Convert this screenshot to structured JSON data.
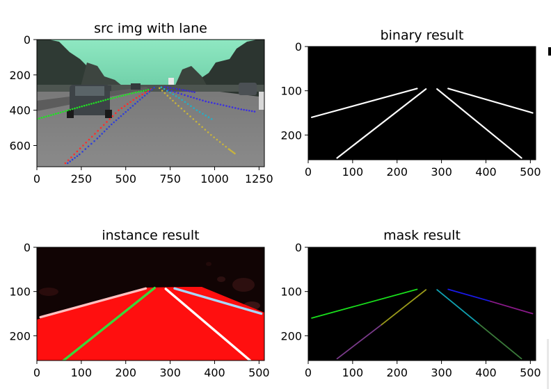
{
  "chart_data": [
    {
      "type": "image",
      "title": "src img with lane",
      "xlim": [
        0,
        1280
      ],
      "ylim": [
        720,
        0
      ],
      "xticks": [
        "0",
        "250",
        "500",
        "750",
        "1000",
        "1250"
      ],
      "xtick_values": [
        0,
        250,
        500,
        750,
        1000,
        1250
      ],
      "yticks": [
        "0",
        "200",
        "400",
        "600"
      ],
      "ytick_values": [
        0,
        200,
        400,
        600
      ],
      "lanes": [
        {
          "color": "#21e024",
          "points": [
            [
              0,
              450
            ],
            [
              80,
              428
            ],
            [
              160,
              405
            ],
            [
              240,
              382
            ],
            [
              320,
              360
            ],
            [
              400,
              338
            ],
            [
              480,
              318
            ],
            [
              560,
              298
            ],
            [
              640,
              282
            ]
          ]
        },
        {
          "color": "#ff2a2a",
          "points": [
            [
              160,
              700
            ],
            [
              260,
              600
            ],
            [
              360,
              500
            ],
            [
              460,
              400
            ],
            [
              560,
              330
            ],
            [
              660,
              272
            ]
          ]
        },
        {
          "color": "#2f3fd8",
          "points": [
            [
              660,
              272
            ],
            [
              580,
              340
            ],
            [
              500,
              410
            ],
            [
              420,
              480
            ],
            [
              340,
              560
            ],
            [
              240,
              650
            ],
            [
              160,
              710
            ]
          ]
        },
        {
          "color": "#c8b43c",
          "points": [
            [
              690,
              275
            ],
            [
              780,
              360
            ],
            [
              880,
              450
            ],
            [
              980,
              540
            ],
            [
              1080,
              620
            ],
            [
              1120,
              650
            ]
          ]
        },
        {
          "color": "#22b0c8",
          "points": [
            [
              700,
              270
            ],
            [
              800,
              330
            ],
            [
              900,
              400
            ],
            [
              1000,
              460
            ]
          ]
        },
        {
          "color": "#3b2fe0",
          "points": [
            [
              740,
              285
            ],
            [
              850,
              320
            ],
            [
              950,
              350
            ],
            [
              1050,
              372
            ],
            [
              1150,
              395
            ],
            [
              1240,
              410
            ]
          ]
        },
        {
          "color": "#3a2ad0",
          "points": [
            [
              720,
              268
            ],
            [
              820,
              285
            ],
            [
              900,
              300
            ]
          ]
        }
      ]
    },
    {
      "type": "image",
      "title": "binary result",
      "xlim": [
        0,
        512
      ],
      "ylim": [
        256,
        0
      ],
      "xticks": [
        "0",
        "100",
        "200",
        "300",
        "400",
        "500"
      ],
      "xtick_values": [
        0,
        100,
        200,
        300,
        400,
        500
      ],
      "yticks": [
        "0",
        "100",
        "200"
      ],
      "ytick_values": [
        0,
        100,
        200
      ],
      "lanes": [
        {
          "color": "#ffffff",
          "points": [
            [
              8,
              160
            ],
            [
              245,
              95
            ]
          ]
        },
        {
          "color": "#ffffff",
          "points": [
            [
              65,
              252
            ],
            [
              265,
              96
            ]
          ]
        },
        {
          "color": "#ffffff",
          "points": [
            [
              290,
              96
            ],
            [
              480,
              252
            ]
          ]
        },
        {
          "color": "#ffffff",
          "points": [
            [
              315,
              95
            ],
            [
              505,
              150
            ]
          ]
        }
      ]
    },
    {
      "type": "image",
      "title": "instance result",
      "xlim": [
        0,
        512
      ],
      "ylim": [
        256,
        0
      ],
      "xticks": [
        "0",
        "100",
        "200",
        "300",
        "400",
        "500"
      ],
      "xtick_values": [
        0,
        100,
        200,
        300,
        400,
        500
      ],
      "yticks": [
        "0",
        "100",
        "200"
      ],
      "ytick_values": [
        0,
        100,
        200
      ],
      "lanes": [
        {
          "color": "#ffc0c0",
          "points": [
            [
              8,
              158
            ],
            [
              245,
              93
            ]
          ]
        },
        {
          "color": "#3ad83a",
          "points": [
            [
              60,
              256
            ],
            [
              265,
              92
            ]
          ]
        },
        {
          "color": "#ffffff",
          "points": [
            [
              290,
              94
            ],
            [
              480,
              256
            ]
          ]
        },
        {
          "color": "#a8d8ff",
          "points": [
            [
              310,
              93
            ],
            [
              505,
              150
            ]
          ]
        }
      ]
    },
    {
      "type": "image",
      "title": "mask result",
      "xlim": [
        0,
        512
      ],
      "ylim": [
        256,
        0
      ],
      "xticks": [
        "0",
        "100",
        "200",
        "300",
        "400",
        "500"
      ],
      "xtick_values": [
        0,
        100,
        200,
        300,
        400,
        500
      ],
      "yticks": [
        "0",
        "100",
        "200"
      ],
      "ytick_values": [
        0,
        100,
        200
      ],
      "lanes": [
        {
          "color": "#19e01c",
          "points": [
            [
              8,
              160
            ],
            [
              245,
              95
            ]
          ]
        },
        {
          "color": "#7a3a8a",
          "points": [
            [
              65,
              252
            ],
            [
              165,
              175
            ]
          ]
        },
        {
          "color": "#9a9a1a",
          "points": [
            [
              165,
              175
            ],
            [
              265,
              96
            ]
          ]
        },
        {
          "color": "#10a0b0",
          "points": [
            [
              290,
              96
            ],
            [
              385,
              174
            ]
          ]
        },
        {
          "color": "#3a7a3a",
          "points": [
            [
              385,
              174
            ],
            [
              480,
              252
            ]
          ]
        },
        {
          "color": "#1a1ae8",
          "points": [
            [
              315,
              95
            ],
            [
              410,
              122
            ]
          ]
        },
        {
          "color": "#8a1a8a",
          "points": [
            [
              410,
              122
            ],
            [
              505,
              150
            ]
          ]
        }
      ]
    }
  ]
}
